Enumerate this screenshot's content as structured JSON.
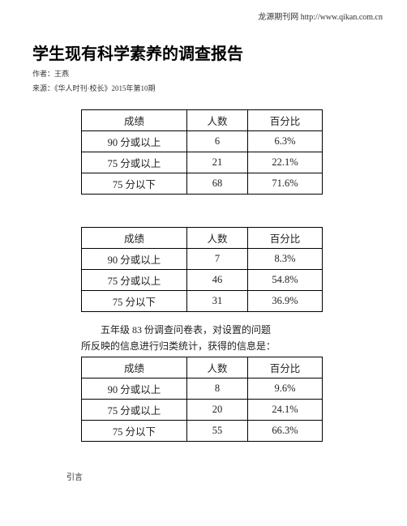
{
  "header": {
    "site_label": "龙源期刊网 http://www.qikan.com.cn"
  },
  "title": "学生现有科学素养的调查报告",
  "author_line": "作者：王燕",
  "source_line": "来源：《华人时刊·校长》2015年第10期",
  "tables": {
    "columns": [
      "成绩",
      "人数",
      "百分比"
    ],
    "t1": [
      [
        "90 分或以上",
        "6",
        "6.3%"
      ],
      [
        "75 分或以上",
        "21",
        "22.1%"
      ],
      [
        "75 分以下",
        "68",
        "71.6%"
      ]
    ],
    "t2": [
      [
        "90 分或以上",
        "7",
        "8.3%"
      ],
      [
        "75 分或以上",
        "46",
        "54.8%"
      ],
      [
        "75 分以下",
        "31",
        "36.9%"
      ]
    ],
    "t3": [
      [
        "90 分或以上",
        "8",
        "9.6%"
      ],
      [
        "75 分或以上",
        "20",
        "24.1%"
      ],
      [
        "75 分以下",
        "55",
        "66.3%"
      ]
    ]
  },
  "caption_line1": "　　五年级 83 份调查问卷表，对设置的问题",
  "caption_line2": "所反映的信息进行归类统计，获得的信息是：",
  "footer_label": "引言"
}
